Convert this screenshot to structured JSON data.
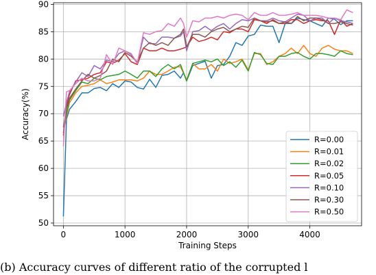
{
  "caption": "(b) Accuracy curves of different ratio of the corrupted l",
  "chart_data": {
    "type": "line",
    "title": "",
    "xlabel": "Training Steps",
    "ylabel": "Accuracy(%)",
    "xlim": [
      -160,
      4840
    ],
    "ylim": [
      49.5,
      90.3
    ],
    "xticks": [
      0,
      1000,
      2000,
      3000,
      4000
    ],
    "yticks": [
      50,
      55,
      60,
      65,
      70,
      75,
      80,
      85,
      90
    ],
    "grid": true,
    "legend_position": "lower-right",
    "series": [
      {
        "name": "R=0.00",
        "color": "#1f77b4",
        "x": [
          0,
          50,
          100,
          200,
          300,
          400,
          500,
          600,
          700,
          800,
          900,
          1000,
          1100,
          1200,
          1300,
          1400,
          1500,
          1600,
          1700,
          1800,
          1900,
          1950,
          2000,
          2100,
          2200,
          2300,
          2400,
          2500,
          2600,
          2700,
          2800,
          2900,
          3000,
          3100,
          3200,
          3300,
          3400,
          3500,
          3600,
          3700,
          3800,
          3900,
          4000,
          4100,
          4200,
          4300,
          4400,
          4500,
          4600,
          4700
        ],
        "y": [
          51.2,
          69,
          70.8,
          72.2,
          73.8,
          73.8,
          74.6,
          74.8,
          74.2,
          75.5,
          74.8,
          76,
          75.8,
          74.8,
          74.5,
          76.3,
          74.8,
          77,
          77.2,
          77.8,
          76.5,
          77.5,
          76,
          78.8,
          79.2,
          79.6,
          76.5,
          78.8,
          79,
          80.5,
          83,
          82.5,
          84.2,
          84.5,
          86.2,
          86,
          86,
          83,
          86.5,
          86.5,
          87.5,
          87.2,
          87,
          86.5,
          86,
          87.5,
          87.3,
          86.3,
          87,
          87
        ]
      },
      {
        "name": "R=0.01",
        "color": "#ff7f0e",
        "x": [
          0,
          50,
          100,
          200,
          300,
          400,
          500,
          600,
          700,
          800,
          900,
          1000,
          1100,
          1200,
          1300,
          1400,
          1500,
          1600,
          1700,
          1800,
          1900,
          2000,
          2100,
          2200,
          2300,
          2400,
          2500,
          2600,
          2700,
          2800,
          2900,
          3000,
          3100,
          3200,
          3300,
          3400,
          3500,
          3600,
          3700,
          3800,
          3900,
          4000,
          4100,
          4200,
          4300,
          4400,
          4500,
          4600,
          4700
        ],
        "y": [
          66.5,
          69.5,
          72,
          73.8,
          75,
          75.2,
          75.5,
          76.2,
          75.5,
          75.8,
          76.2,
          76.2,
          76.2,
          76,
          76.5,
          77.8,
          77.2,
          77.2,
          77.8,
          78.5,
          78.6,
          76.2,
          79.2,
          78.2,
          78.2,
          79,
          77.8,
          80,
          79.2,
          79.5,
          80,
          78,
          81,
          81,
          79,
          79.5,
          80.5,
          81,
          82,
          81,
          82.5,
          81,
          80.5,
          82,
          82.5,
          81.8,
          81.5,
          81.5,
          81
        ]
      },
      {
        "name": "R=0.02",
        "color": "#2ca02c",
        "x": [
          0,
          50,
          100,
          200,
          300,
          400,
          500,
          600,
          700,
          800,
          900,
          1000,
          1100,
          1200,
          1300,
          1400,
          1500,
          1600,
          1700,
          1800,
          1900,
          2000,
          2100,
          2200,
          2300,
          2400,
          2500,
          2600,
          2700,
          2800,
          2900,
          3000,
          3100,
          3200,
          3300,
          3400,
          3500,
          3600,
          3700,
          3800,
          3900,
          4000,
          4100,
          4200,
          4300,
          4400,
          4500,
          4600,
          4700
        ],
        "y": [
          66.5,
          70,
          72.5,
          74.2,
          75.8,
          75.5,
          76.5,
          76.2,
          76.8,
          77,
          77.2,
          77.8,
          77.2,
          76.5,
          77.8,
          77.8,
          76.8,
          78.2,
          79,
          78.2,
          79,
          76,
          79.2,
          79.5,
          79.8,
          79.5,
          80,
          78.8,
          79.5,
          78.5,
          79.8,
          77.8,
          81.2,
          80.8,
          79.2,
          79,
          80.5,
          80.5,
          81,
          81.2,
          80.5,
          80,
          81,
          81,
          80.8,
          80.5,
          81.5,
          81,
          80.8
        ]
      },
      {
        "name": "R=0.05",
        "color": "#d62728",
        "x": [
          0,
          50,
          100,
          200,
          300,
          400,
          500,
          600,
          700,
          800,
          900,
          1000,
          1100,
          1200,
          1300,
          1400,
          1500,
          1600,
          1700,
          1800,
          1900,
          1950,
          2000,
          2100,
          2200,
          2300,
          2400,
          2500,
          2600,
          2700,
          2800,
          2900,
          3000,
          3100,
          3200,
          3300,
          3400,
          3500,
          3600,
          3700,
          3800,
          3900,
          4000,
          4100,
          4200,
          4300,
          4400,
          4500,
          4600,
          4700
        ],
        "y": [
          66,
          71.5,
          73.5,
          76,
          76.2,
          76.5,
          77.2,
          77.5,
          79.5,
          79.2,
          79.8,
          81,
          79.5,
          79,
          82,
          81.5,
          81.5,
          82,
          81.5,
          81.5,
          81.8,
          82,
          82.2,
          84,
          83.2,
          83.5,
          84,
          83.5,
          85,
          84.8,
          85.5,
          85.5,
          85,
          87.2,
          87,
          86.5,
          87.2,
          86.5,
          86.5,
          87.2,
          87.2,
          86.5,
          87,
          87.2,
          87,
          87,
          84.5,
          87.2,
          86,
          86.5
        ]
      },
      {
        "name": "R=0.10",
        "color": "#9467bd",
        "x": [
          0,
          50,
          100,
          200,
          300,
          400,
          500,
          600,
          700,
          800,
          900,
          1000,
          1100,
          1200,
          1300,
          1400,
          1500,
          1600,
          1700,
          1800,
          1900,
          1950,
          2000,
          2100,
          2200,
          2300,
          2400,
          2500,
          2600,
          2700,
          2800,
          2900,
          3000,
          3100,
          3200,
          3300,
          3400,
          3500,
          3600,
          3700,
          3800,
          3900,
          4000,
          4100,
          4200,
          4300,
          4400,
          4500,
          4600,
          4700
        ],
        "y": [
          69.5,
          72,
          74,
          75.8,
          77.5,
          76.8,
          78.8,
          78.2,
          79.8,
          79.5,
          81,
          81.5,
          80.8,
          79.2,
          84,
          82.8,
          82.8,
          84,
          84,
          83.8,
          84.2,
          85,
          81.5,
          85,
          85.2,
          86,
          85.2,
          86,
          86.5,
          85.5,
          86.5,
          87.2,
          87,
          87.5,
          87,
          87,
          87.5,
          87,
          86.8,
          87.5,
          88.2,
          88,
          87,
          87.5,
          87.5,
          86.5,
          87.5,
          87,
          86.8,
          86.5
        ]
      },
      {
        "name": "R=0.30",
        "color": "#8c564b",
        "x": [
          0,
          50,
          100,
          200,
          300,
          400,
          500,
          600,
          700,
          800,
          900,
          1000,
          1100,
          1200,
          1300,
          1400,
          1500,
          1600,
          1700,
          1800,
          1900,
          1950,
          2000,
          2100,
          2200,
          2300,
          2400,
          2500,
          2600,
          2700,
          2800,
          2900,
          3000,
          3100,
          3200,
          3300,
          3400,
          3500,
          3600,
          3700,
          3800,
          3900,
          4000,
          4100,
          4200,
          4300,
          4400,
          4500,
          4600,
          4700
        ],
        "y": [
          67.5,
          71,
          72.8,
          74.5,
          76,
          77.2,
          76.5,
          77,
          77.8,
          80,
          79.5,
          81.2,
          80.5,
          79.5,
          82,
          83,
          82.5,
          83,
          82.5,
          83.8,
          84.5,
          85.5,
          82.2,
          84.5,
          84.5,
          84,
          85,
          85.5,
          85.8,
          85,
          85.5,
          86,
          85.8,
          87.5,
          87,
          86.8,
          87,
          86.5,
          86.8,
          86.5,
          87.8,
          87,
          87.5,
          87.5,
          87.2,
          86.5,
          86.5,
          86.8,
          86.5,
          86.2
        ]
      },
      {
        "name": "R=0.50",
        "color": "#e377c2",
        "x": [
          0,
          50,
          100,
          200,
          300,
          400,
          500,
          600,
          700,
          800,
          900,
          1000,
          1100,
          1200,
          1300,
          1400,
          1500,
          1600,
          1700,
          1800,
          1900,
          1950,
          2000,
          2100,
          2200,
          2300,
          2400,
          2500,
          2600,
          2700,
          2800,
          2900,
          3000,
          3100,
          3200,
          3300,
          3400,
          3500,
          3600,
          3700,
          3800,
          3900,
          4000,
          4100,
          4200,
          4300,
          4400,
          4500,
          4600,
          4700
        ],
        "y": [
          64,
          74,
          74.2,
          75.5,
          76.5,
          76,
          76,
          76.5,
          80.8,
          79,
          82,
          81.5,
          81,
          79.2,
          84.8,
          84.5,
          85,
          85.2,
          86.5,
          86,
          87.5,
          86.5,
          84,
          87,
          86.8,
          87.5,
          87.5,
          87.8,
          87.5,
          88,
          88.2,
          88,
          87.2,
          88.5,
          88,
          88,
          88.5,
          88,
          88,
          88.2,
          88.5,
          88,
          88,
          88,
          87.8,
          87.5,
          87.5,
          87.2,
          89,
          88.5
        ]
      }
    ]
  }
}
